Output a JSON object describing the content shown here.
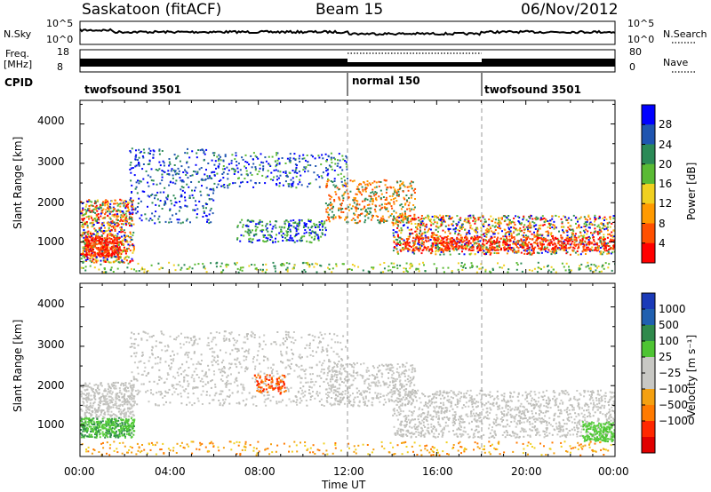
{
  "header": {
    "title": "Saskatoon (fitACF)",
    "beam": "Beam 15",
    "date": "06/Nov/2012"
  },
  "panels": {
    "nsky_label": "N.Sky",
    "nsearch_label": "N.Search",
    "freq_label_top": "Freq.",
    "freq_label_unit": "[MHz]",
    "nave_label": "Nave",
    "cpid_label": "CPID"
  },
  "chart_data": [
    {
      "type": "line",
      "name": "noise",
      "left_ticks": [
        "10^5",
        "10^0"
      ],
      "right_ticks": [
        "10^5",
        "10^0"
      ],
      "series": [
        {
          "name": "N.Sky",
          "style": "solid"
        },
        {
          "name": "N.Search",
          "style": "dotted"
        }
      ]
    },
    {
      "type": "line",
      "name": "frequency",
      "left_ticks": [
        "18",
        "8"
      ],
      "right_ticks": [
        "80",
        "0"
      ],
      "segments": [
        {
          "start_hour": 0,
          "end_hour": 12,
          "freq_mhz": 12
        },
        {
          "start_hour": 12,
          "end_hour": 18,
          "freq_mhz": 10.5
        },
        {
          "start_hour": 18,
          "end_hour": 24,
          "freq_mhz": 12
        }
      ]
    },
    {
      "type": "table",
      "name": "cpid",
      "segments": [
        {
          "label": "twofsound 3501",
          "start_hour": 0
        },
        {
          "label": "normal 150",
          "start_hour": 12
        },
        {
          "label": "twofsound 3501",
          "start_hour": 18
        }
      ]
    },
    {
      "type": "heatmap",
      "name": "power",
      "ylabel": "Slant Range [km]",
      "yticks": [
        "4000",
        "3000",
        "2000",
        "1000"
      ],
      "colorbar_label": "Power [dB]",
      "colorbar_ticks": [
        "28",
        "24",
        "20",
        "16",
        "12",
        "8",
        "4"
      ],
      "colorbar_colors": [
        "#0000ff",
        "#1f55b0",
        "#2b8a56",
        "#5aba34",
        "#f0d020",
        "#ff9a00",
        "#ff5000",
        "#ff0000"
      ]
    },
    {
      "type": "heatmap",
      "name": "velocity",
      "ylabel": "Slant Range [km]",
      "yticks": [
        "4000",
        "3000",
        "2000",
        "1000"
      ],
      "xlabel": "Time UT",
      "xticks": [
        "00:00",
        "04:00",
        "08:00",
        "12:00",
        "16:00",
        "20:00",
        "00:00"
      ],
      "colorbar_label": "Velocity [m s⁻¹]",
      "colorbar_ticks": [
        "1000",
        "500",
        "100",
        "25",
        "−25",
        "−100",
        "−500",
        "−1000"
      ],
      "colorbar_colors": [
        "#1a3ab8",
        "#2060b0",
        "#2f8a4c",
        "#4ec433",
        "#c8c8c4",
        "#c8c8c4",
        "#f4a010",
        "#ff7a00",
        "#ff2800",
        "#e00000"
      ]
    }
  ]
}
